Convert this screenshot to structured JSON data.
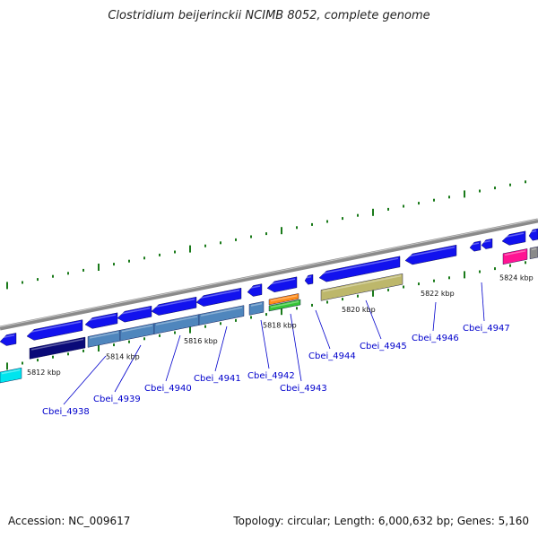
{
  "header": {
    "title": "Clostridium beijerinckii NCIMB 8052, complete genome"
  },
  "footer": {
    "accession": "Accession: NC_009617",
    "summary": "Topology: circular; Length: 6,000,632 bp; Genes: 5,160"
  },
  "colors": {
    "forward_gene": "#1212ee",
    "backbone": "#8a8a8a",
    "tick": "#1a7a1a",
    "label": "#0000cc",
    "dark_navy": "#0a0a78",
    "steel_blue": "#4f86bd",
    "cyan": "#00e5ee",
    "orange": "#ff8c1a",
    "green": "#35c435",
    "khaki": "#bdb76b",
    "pink": "#ff1493"
  },
  "scale": {
    "ticks": [
      "5812 kbp",
      "5814 kbp",
      "5816 kbp",
      "5818 kbp",
      "5820 kbp",
      "5822 kbp",
      "5824 kbp"
    ]
  },
  "genes": [
    {
      "name": "Cbei_4938"
    },
    {
      "name": "Cbei_4939"
    },
    {
      "name": "Cbei_4940"
    },
    {
      "name": "Cbei_4941"
    },
    {
      "name": "Cbei_4942"
    },
    {
      "name": "Cbei_4943"
    },
    {
      "name": "Cbei_4944"
    },
    {
      "name": "Cbei_4945"
    },
    {
      "name": "Cbei_4946"
    },
    {
      "name": "Cbei_4947"
    }
  ]
}
